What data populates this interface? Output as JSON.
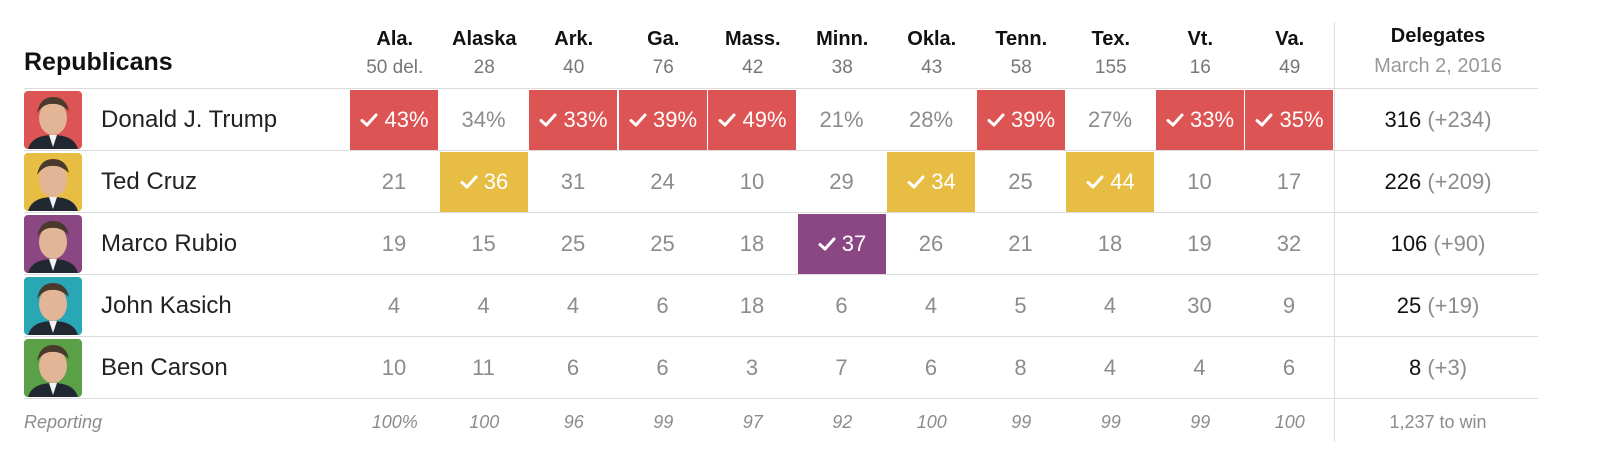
{
  "colors": {
    "trump": "#dc5453",
    "cruz": "#e8bd44",
    "rubio": "#8b4783",
    "kasich": "#2aa7b4",
    "carson": "#5aa046",
    "divider": "#dcdcdc",
    "muted": "#8c8c8c"
  },
  "chart_data": {
    "type": "table",
    "title": "Republicans",
    "states": [
      {
        "name": "Ala.",
        "delegates": "50 del.",
        "reporting": "100%"
      },
      {
        "name": "Alaska",
        "delegates": "28",
        "reporting": "100"
      },
      {
        "name": "Ark.",
        "delegates": "40",
        "reporting": "96"
      },
      {
        "name": "Ga.",
        "delegates": "76",
        "reporting": "99"
      },
      {
        "name": "Mass.",
        "delegates": "42",
        "reporting": "97"
      },
      {
        "name": "Minn.",
        "delegates": "38",
        "reporting": "92"
      },
      {
        "name": "Okla.",
        "delegates": "43",
        "reporting": "100"
      },
      {
        "name": "Tenn.",
        "delegates": "58",
        "reporting": "99"
      },
      {
        "name": "Tex.",
        "delegates": "155",
        "reporting": "99"
      },
      {
        "name": "Vt.",
        "delegates": "16",
        "reporting": "99"
      },
      {
        "name": "Va.",
        "delegates": "49",
        "reporting": "100"
      }
    ],
    "delegates_header": {
      "title": "Delegates",
      "date": "March 2, 2016"
    },
    "candidates": [
      {
        "name": "Donald J. Trump",
        "color_key": "trump",
        "avatar_icon": "donald-trump-portrait",
        "values": [
          "43%",
          "34%",
          "33%",
          "39%",
          "49%",
          "21%",
          "28%",
          "39%",
          "27%",
          "33%",
          "35%"
        ],
        "wins": [
          true,
          false,
          true,
          true,
          true,
          false,
          false,
          true,
          false,
          true,
          true
        ],
        "delegates": "316",
        "delegates_change": "(+234)"
      },
      {
        "name": "Ted Cruz",
        "color_key": "cruz",
        "avatar_icon": "ted-cruz-portrait",
        "values": [
          "21",
          "36",
          "31",
          "24",
          "10",
          "29",
          "34",
          "25",
          "44",
          "10",
          "17"
        ],
        "wins": [
          false,
          true,
          false,
          false,
          false,
          false,
          true,
          false,
          true,
          false,
          false
        ],
        "delegates": "226",
        "delegates_change": "(+209)"
      },
      {
        "name": "Marco Rubio",
        "color_key": "rubio",
        "avatar_icon": "marco-rubio-portrait",
        "values": [
          "19",
          "15",
          "25",
          "25",
          "18",
          "37",
          "26",
          "21",
          "18",
          "19",
          "32"
        ],
        "wins": [
          false,
          false,
          false,
          false,
          false,
          true,
          false,
          false,
          false,
          false,
          false
        ],
        "delegates": "106",
        "delegates_change": "(+90)"
      },
      {
        "name": "John Kasich",
        "color_key": "kasich",
        "avatar_icon": "john-kasich-portrait",
        "values": [
          "4",
          "4",
          "4",
          "6",
          "18",
          "6",
          "4",
          "5",
          "4",
          "30",
          "9"
        ],
        "wins": [
          false,
          false,
          false,
          false,
          false,
          false,
          false,
          false,
          false,
          false,
          false
        ],
        "delegates": "25",
        "delegates_change": "(+19)"
      },
      {
        "name": "Ben Carson",
        "color_key": "carson",
        "avatar_icon": "ben-carson-portrait",
        "values": [
          "10",
          "11",
          "6",
          "6",
          "3",
          "7",
          "6",
          "8",
          "4",
          "4",
          "6"
        ],
        "wins": [
          false,
          false,
          false,
          false,
          false,
          false,
          false,
          false,
          false,
          false,
          false
        ],
        "delegates": "8",
        "delegates_change": "(+3)"
      }
    ],
    "reporting_label": "Reporting",
    "to_win": "1,237 to win"
  }
}
